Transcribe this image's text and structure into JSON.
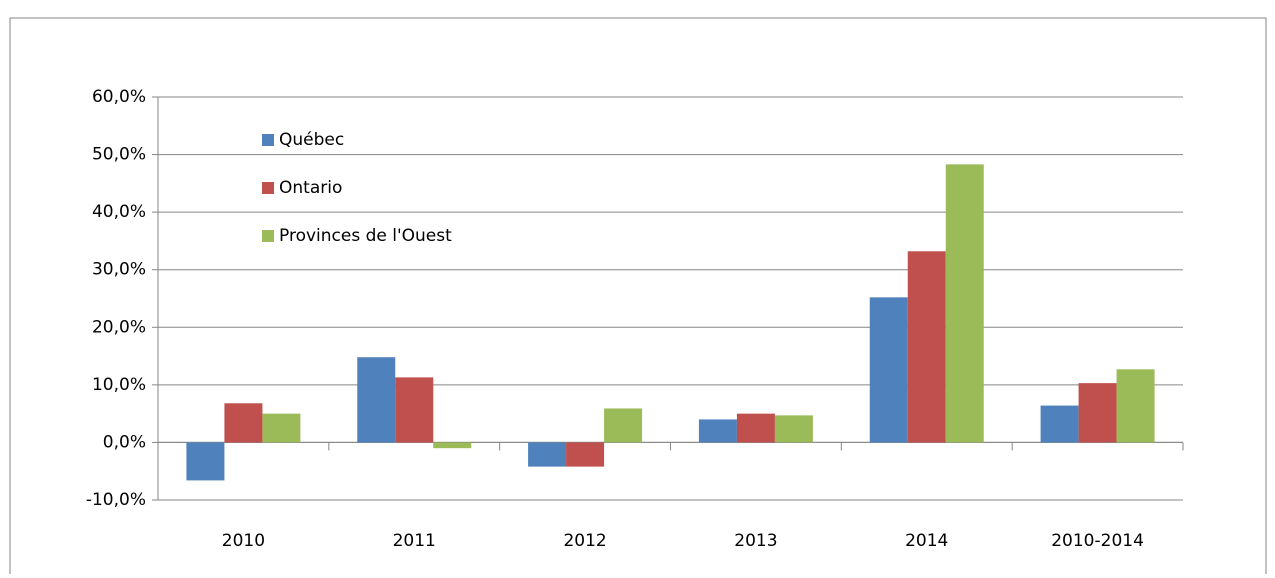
{
  "chart_data": {
    "type": "bar",
    "categories": [
      "2010",
      "2011",
      "2012",
      "2013",
      "2014",
      "2010-2014"
    ],
    "series": [
      {
        "name": "Québec",
        "color": "#4f81bd",
        "values": [
          -6.6,
          14.8,
          -4.2,
          4.0,
          25.2,
          6.4
        ]
      },
      {
        "name": "Ontario",
        "color": "#c0504d",
        "values": [
          6.8,
          11.3,
          -4.2,
          5.0,
          33.2,
          10.3
        ]
      },
      {
        "name": "Provinces de l'Ouest",
        "color": "#9bbb59",
        "values": [
          5.0,
          -1.0,
          5.9,
          4.7,
          48.3,
          12.7
        ]
      }
    ],
    "ylim": [
      -10,
      60
    ],
    "yticks": [
      {
        "value": -10,
        "label": "-10,0%"
      },
      {
        "value": 0,
        "label": "0,0%"
      },
      {
        "value": 10,
        "label": "10,0%"
      },
      {
        "value": 20,
        "label": "20,0%"
      },
      {
        "value": 30,
        "label": "30,0%"
      },
      {
        "value": 40,
        "label": "40,0%"
      },
      {
        "value": 50,
        "label": "50,0%"
      },
      {
        "value": 60,
        "label": "60,0%"
      }
    ],
    "grid": true,
    "legend": "top-left"
  }
}
